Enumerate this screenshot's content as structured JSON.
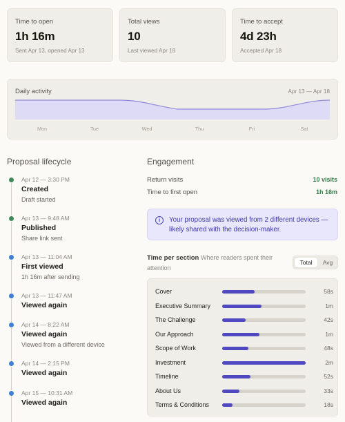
{
  "stats": [
    {
      "label": "Time to open",
      "value": "1h 16m",
      "sub": "Sent Apr 13, opened Apr 13"
    },
    {
      "label": "Total views",
      "value": "10",
      "sub": "Last viewed Apr 18"
    },
    {
      "label": "Time to accept",
      "value": "4d 23h",
      "sub": "Accepted Apr 18"
    }
  ],
  "daily_activity": {
    "title": "Daily activity",
    "range": "Apr 13 — Apr 18",
    "days": [
      "Mon",
      "Tue",
      "Wed",
      "Thu",
      "Fri",
      "Sat"
    ],
    "colors": {
      "fill": "#dedbf6",
      "stroke": "#8f89d8"
    }
  },
  "lifecycle": {
    "heading": "Proposal lifecycle",
    "events": [
      {
        "date": "Apr 12 — 3:30 PM",
        "title": "Created",
        "desc": "Draft started",
        "color": "#3f8a5a"
      },
      {
        "date": "Apr 13 — 9:48 AM",
        "title": "Published",
        "desc": "Share link sent",
        "color": "#3f8a5a"
      },
      {
        "date": "Apr 13 — 11:04 AM",
        "title": "First viewed",
        "desc": "1h 16m after sending",
        "color": "#3f7fd6"
      },
      {
        "date": "Apr 13 — 11:47 AM",
        "title": "Viewed again",
        "desc": "",
        "color": "#3f7fd6"
      },
      {
        "date": "Apr 14 — 8:22 AM",
        "title": "Viewed again",
        "desc": "Viewed from a different device",
        "color": "#3f7fd6"
      },
      {
        "date": "Apr 14 — 2:15 PM",
        "title": "Viewed again",
        "desc": "",
        "color": "#3f7fd6"
      },
      {
        "date": "Apr 15 — 10:31 AM",
        "title": "Viewed again",
        "desc": "",
        "color": "#3f7fd6"
      }
    ]
  },
  "engagement": {
    "heading": "Engagement",
    "return_visits_label": "Return visits",
    "return_visits_value": "10 visits",
    "first_open_label": "Time to first open",
    "first_open_value": "1h 16m",
    "info_text": "Your proposal was viewed from 2 different devices — likely shared with the decision-maker.",
    "info_icon": "i"
  },
  "time_per_section": {
    "title": "Time per section",
    "subtitle": "Where readers spent their attention",
    "toggle": {
      "active": "Total",
      "inactive": "Avg"
    },
    "rows": [
      {
        "name": "Cover",
        "time": "58s",
        "fraction": 0.39
      },
      {
        "name": "Executive Summary",
        "time": "1m",
        "fraction": 0.47
      },
      {
        "name": "The Challenge",
        "time": "42s",
        "fraction": 0.28
      },
      {
        "name": "Our Approach",
        "time": "1m",
        "fraction": 0.45
      },
      {
        "name": "Scope of Work",
        "time": "48s",
        "fraction": 0.31
      },
      {
        "name": "Investment",
        "time": "2m",
        "fraction": 1.0
      },
      {
        "name": "Timeline",
        "time": "52s",
        "fraction": 0.34
      },
      {
        "name": "About Us",
        "time": "33s",
        "fraction": 0.21
      },
      {
        "name": "Terms & Conditions",
        "time": "18s",
        "fraction": 0.12
      }
    ],
    "bar_color": "#4f48c0"
  }
}
